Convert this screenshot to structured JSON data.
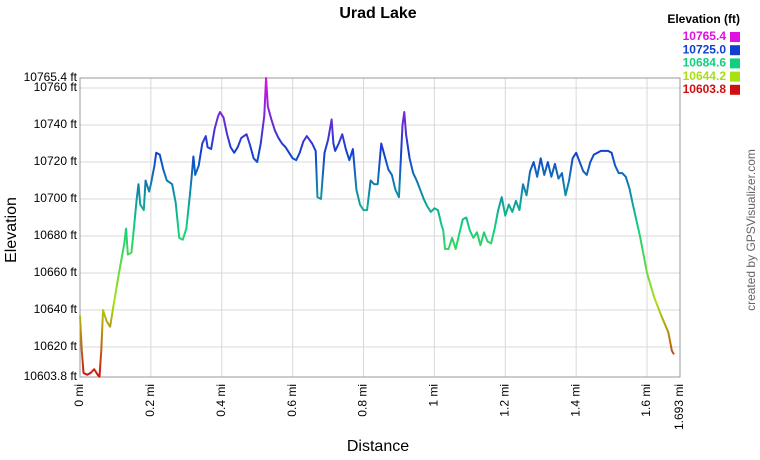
{
  "chart_data": {
    "type": "line",
    "title": "Urad Lake",
    "x_label": "Distance",
    "y_label": "Elevation",
    "credit": "created by GPSVisualizer.com",
    "grid": true,
    "legend": {
      "title": "Elevation (ft)",
      "items": [
        {
          "value": 10765.4,
          "label": "10765.4",
          "color": "#e010e0"
        },
        {
          "value": 10725,
          "label": "10725.0",
          "color": "#1040d0"
        },
        {
          "value": 10684.6,
          "label": "10684.6",
          "color": "#10d080"
        },
        {
          "value": 10644.2,
          "label": "10644.2",
          "color": "#a8e010"
        },
        {
          "value": 10603.8,
          "label": "10603.8",
          "color": "#d01010"
        }
      ]
    },
    "xlim": [
      0,
      1.693
    ],
    "ylim": [
      10603.8,
      10765.4
    ],
    "xticks": [
      {
        "value": 0,
        "label": "0 mi"
      },
      {
        "value": 0.2,
        "label": "0.2 mi"
      },
      {
        "value": 0.4,
        "label": "0.4 mi"
      },
      {
        "value": 0.6,
        "label": "0.6 mi"
      },
      {
        "value": 0.8,
        "label": "0.8 mi"
      },
      {
        "value": 1,
        "label": "1 mi"
      },
      {
        "value": 1.2,
        "label": "1.2 mi"
      },
      {
        "value": 1.4,
        "label": "1.4 mi"
      },
      {
        "value": 1.6,
        "label": "1.6 mi"
      },
      {
        "value": 1.693,
        "label": "1.693 mi"
      }
    ],
    "yticks": [
      {
        "value": 10603.8,
        "label": "10603.8 ft"
      },
      {
        "value": 10620,
        "label": "10620 ft"
      },
      {
        "value": 10640,
        "label": "10640 ft"
      },
      {
        "value": 10660,
        "label": "10660 ft"
      },
      {
        "value": 10680,
        "label": "10680 ft"
      },
      {
        "value": 10700,
        "label": "10700 ft"
      },
      {
        "value": 10720,
        "label": "10720 ft"
      },
      {
        "value": 10740,
        "label": "10740 ft"
      },
      {
        "value": 10760,
        "label": "10760 ft"
      },
      {
        "value": 10765.4,
        "label": "10765.4 ft"
      }
    ],
    "x": [
      0,
      0.005,
      0.01,
      0.02,
      0.03,
      0.04,
      0.05,
      0.055,
      0.06,
      0.065,
      0.075,
      0.085,
      0.095,
      0.11,
      0.125,
      0.13,
      0.135,
      0.145,
      0.15,
      0.16,
      0.165,
      0.17,
      0.18,
      0.185,
      0.195,
      0.2,
      0.21,
      0.215,
      0.225,
      0.235,
      0.245,
      0.26,
      0.27,
      0.28,
      0.29,
      0.3,
      0.31,
      0.315,
      0.32,
      0.325,
      0.335,
      0.345,
      0.355,
      0.36,
      0.37,
      0.38,
      0.39,
      0.395,
      0.405,
      0.415,
      0.425,
      0.435,
      0.445,
      0.455,
      0.47,
      0.48,
      0.49,
      0.5,
      0.51,
      0.52,
      0.525,
      0.53,
      0.54,
      0.55,
      0.56,
      0.57,
      0.58,
      0.6,
      0.61,
      0.62,
      0.63,
      0.64,
      0.655,
      0.665,
      0.67,
      0.68,
      0.69,
      0.7,
      0.71,
      0.715,
      0.72,
      0.73,
      0.74,
      0.75,
      0.76,
      0.77,
      0.78,
      0.79,
      0.8,
      0.81,
      0.82,
      0.83,
      0.84,
      0.85,
      0.86,
      0.87,
      0.88,
      0.89,
      0.9,
      0.91,
      0.915,
      0.92,
      0.93,
      0.94,
      0.95,
      0.96,
      0.97,
      0.98,
      0.99,
      1.0,
      1.01,
      1.02,
      1.025,
      1.03,
      1.04,
      1.05,
      1.06,
      1.07,
      1.08,
      1.09,
      1.1,
      1.11,
      1.12,
      1.13,
      1.14,
      1.15,
      1.16,
      1.17,
      1.18,
      1.19,
      1.2,
      1.21,
      1.22,
      1.23,
      1.24,
      1.25,
      1.26,
      1.27,
      1.28,
      1.29,
      1.3,
      1.31,
      1.32,
      1.33,
      1.34,
      1.35,
      1.36,
      1.37,
      1.38,
      1.39,
      1.4,
      1.41,
      1.42,
      1.43,
      1.44,
      1.45,
      1.47,
      1.49,
      1.5,
      1.51,
      1.52,
      1.53,
      1.54,
      1.55,
      1.56,
      1.58,
      1.6,
      1.62,
      1.64,
      1.66,
      1.67,
      1.676
    ],
    "values": [
      10637,
      10618,
      10606,
      10605,
      10606,
      10608,
      10605,
      10604,
      10618,
      10640,
      10634,
      10631,
      10643,
      10660,
      10676,
      10684,
      10670,
      10671,
      10680,
      10700,
      10708,
      10697,
      10694,
      10710,
      10704,
      10708,
      10718,
      10725,
      10724,
      10716,
      10710,
      10708,
      10698,
      10679,
      10678,
      10684,
      10702,
      10712,
      10723,
      10713,
      10718,
      10730,
      10734,
      10728,
      10727,
      10738,
      10745,
      10747,
      10744,
      10735,
      10728,
      10725,
      10728,
      10733,
      10735,
      10729,
      10722,
      10720,
      10730,
      10745,
      10765.4,
      10750,
      10743,
      10737,
      10733,
      10730,
      10728,
      10722,
      10721,
      10725,
      10731,
      10734,
      10730,
      10726,
      10701,
      10700,
      10725,
      10732,
      10743,
      10730,
      10726,
      10730,
      10735,
      10727,
      10721,
      10727,
      10705,
      10697,
      10694,
      10694,
      10710,
      10708,
      10708,
      10730,
      10723,
      10716,
      10713,
      10705,
      10701,
      10740,
      10747,
      10735,
      10722,
      10714,
      10710,
      10705,
      10700,
      10696,
      10693,
      10695,
      10694,
      10686,
      10683,
      10673,
      10673,
      10679,
      10673,
      10681,
      10689,
      10690,
      10683,
      10679,
      10682,
      10675,
      10682,
      10677,
      10676,
      10684,
      10694,
      10701,
      10691,
      10697,
      10693,
      10699,
      10694,
      10708,
      10702,
      10715,
      10720,
      10712,
      10722,
      10713,
      10720,
      10712,
      10719,
      10711,
      10714,
      10702,
      10710,
      10722,
      10725,
      10720,
      10715,
      10713,
      10720,
      10724,
      10726,
      10726,
      10725,
      10718,
      10714,
      10714,
      10712,
      10706,
      10697,
      10680,
      10660,
      10647,
      10637,
      10628,
      10618,
      10616
    ]
  }
}
